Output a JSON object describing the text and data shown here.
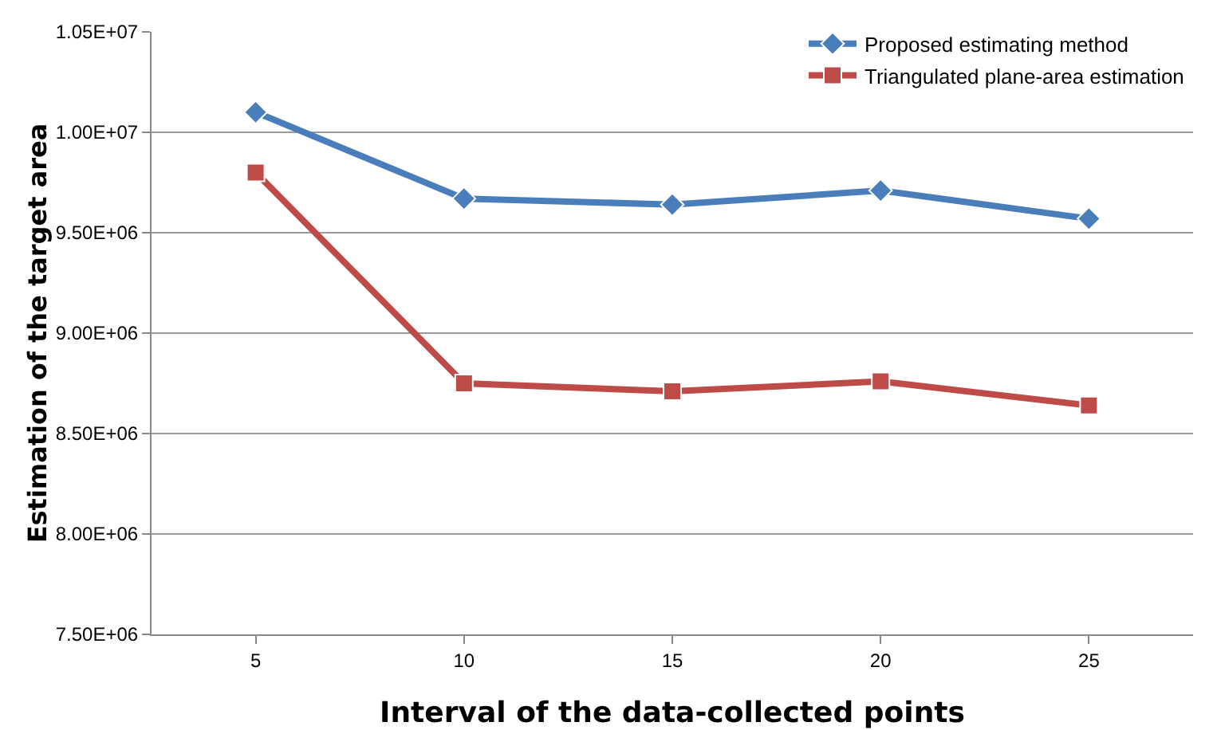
{
  "chart_data": {
    "type": "line",
    "xlabel": "Interval of the data-collected points",
    "ylabel": "Estimation of the target area",
    "categories": [
      "5",
      "10",
      "15",
      "20",
      "25"
    ],
    "series": [
      {
        "name": "Proposed estimating method",
        "color": "#4a7ebb",
        "marker": "diamond",
        "values": [
          10100000,
          9670000,
          9640000,
          9710000,
          9570000
        ]
      },
      {
        "name": "Triangulated plane-area estimation",
        "color": "#be4b48",
        "marker": "square",
        "values": [
          9800000,
          8750000,
          8710000,
          8760000,
          8640000
        ]
      }
    ],
    "ylim": [
      7500000,
      10500000
    ],
    "yticks": [
      {
        "value": 7500000,
        "label": "7.50E+06"
      },
      {
        "value": 8000000,
        "label": "8.00E+06"
      },
      {
        "value": 8500000,
        "label": "8.50E+06"
      },
      {
        "value": 9000000,
        "label": "9.00E+06"
      },
      {
        "value": 9500000,
        "label": "9.50E+06"
      },
      {
        "value": 10000000,
        "label": "1.00E+07"
      },
      {
        "value": 10500000,
        "label": "1.05E+07"
      }
    ],
    "grid": "y",
    "legend": "top right",
    "line_style": "solid"
  }
}
